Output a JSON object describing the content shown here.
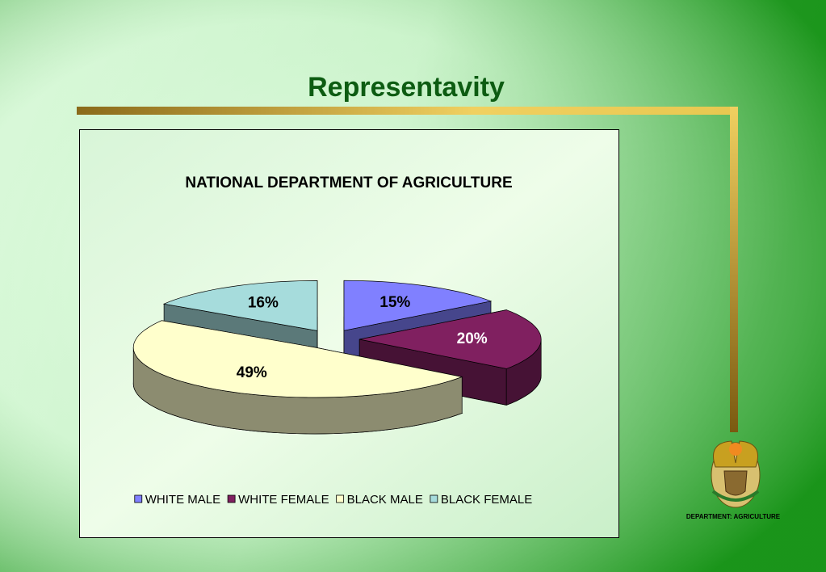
{
  "slide": {
    "title": "Representavity",
    "logo_caption": "DEPARTMENT:  AGRICULTURE"
  },
  "chart_data": {
    "type": "pie",
    "title": "NATIONAL DEPARTMENT OF AGRICULTURE",
    "categories": [
      "WHITE MALE",
      "WHITE FEMALE",
      "BLACK MALE",
      "BLACK FEMALE"
    ],
    "values": [
      15,
      20,
      49,
      16
    ],
    "value_labels": [
      "15%",
      "20%",
      "49%",
      "16%"
    ],
    "colors": [
      "#8080ff",
      "#802060",
      "#ffffcc",
      "#a6dcdc"
    ],
    "legend": "bottom"
  }
}
